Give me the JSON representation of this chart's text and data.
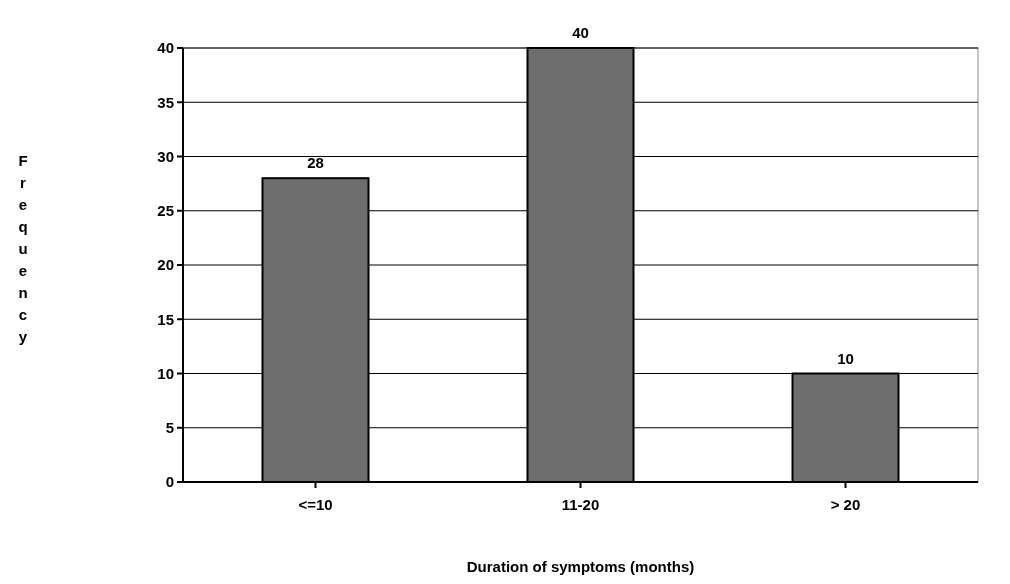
{
  "chart_data": {
    "type": "bar",
    "xlabel": "Duration of symptoms (months)",
    "ylabel": "Frequency",
    "categories": [
      "<=10",
      "11-20",
      "> 20"
    ],
    "values": [
      28,
      40,
      10
    ],
    "color": "#6e6e6e",
    "data_labels": true,
    "ylim": [
      0,
      40
    ],
    "yticks": [
      0,
      5,
      10,
      15,
      20,
      25,
      30,
      35,
      40
    ],
    "grid": "y"
  }
}
